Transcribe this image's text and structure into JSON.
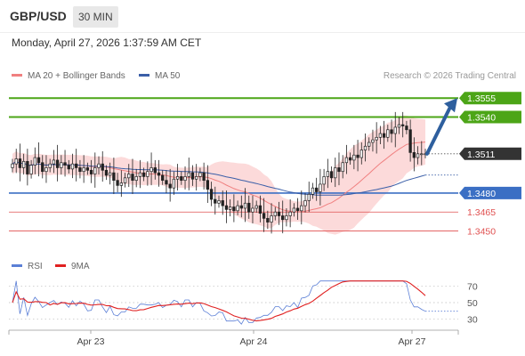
{
  "header": {
    "pair": "GBP/USD",
    "timeframe": "30 MIN",
    "datetime": "Monday, April 27, 2026 1:37:59 AM CET"
  },
  "legend": {
    "ma20_label": "MA 20 + Bollinger Bands",
    "ma50_label": "MA 50",
    "rsi_label": "RSI",
    "ma9_label": "9MA",
    "credit": "Research © 2026 Trading Central"
  },
  "colors": {
    "resistance": "#4ca517",
    "support_blue": "#3b6fc4",
    "support_red": "#e05050",
    "ma20": "#f08080",
    "band_fill": "#fcd4d4",
    "ma50": "#3b5fa8",
    "candle": "#222222",
    "arrow": "#2e5f9e",
    "rsi": "#5b7fd6",
    "rsi_ma": "#e02020",
    "last_price_bg": "#333333"
  },
  "chart_data": [
    {
      "type": "candlestick",
      "ylim": [
        1.343,
        1.3565
      ],
      "x_labels": [
        "Apr 23",
        "Apr 24",
        "Apr 27"
      ],
      "last_price": 1.3511,
      "resistance_levels": [
        1.3555,
        1.354
      ],
      "support_levels": [
        1.348,
        1.3465,
        1.345
      ],
      "level_labels": {
        "r2": "1.3555",
        "r1": "1.3540",
        "last": "1.3511",
        "s1": "1.3480",
        "s2": "1.3465",
        "s3": "1.3450"
      },
      "forecast_arrow": {
        "from": 1.3511,
        "to": 1.3555
      },
      "series": [
        {
          "name": "MA 20 + Bollinger Bands",
          "type": "band"
        },
        {
          "name": "MA 50",
          "type": "line"
        }
      ],
      "close": [
        1.3503,
        1.3507,
        1.35,
        1.3505,
        1.3495,
        1.3502,
        1.3508,
        1.3504,
        1.3497,
        1.35,
        1.3503,
        1.3506,
        1.35,
        1.3504,
        1.3502,
        1.3499,
        1.3503,
        1.35,
        1.3497,
        1.35,
        1.3498,
        1.3495,
        1.35,
        1.3503,
        1.3498,
        1.3494,
        1.3496,
        1.349,
        1.3486,
        1.3488,
        1.3492,
        1.3495,
        1.349,
        1.3493,
        1.3496,
        1.3493,
        1.3497,
        1.35,
        1.3496,
        1.3494,
        1.349,
        1.3487,
        1.3484,
        1.3491,
        1.3493,
        1.349,
        1.3493,
        1.3496,
        1.3491,
        1.3493,
        1.3496,
        1.349,
        1.3483,
        1.3475,
        1.3472,
        1.3474,
        1.347,
        1.3467,
        1.3469,
        1.3466,
        1.347,
        1.3468,
        1.3472,
        1.3465,
        1.3468,
        1.347,
        1.3464,
        1.346,
        1.3457,
        1.3462,
        1.3465,
        1.3462,
        1.3459,
        1.3462,
        1.3465,
        1.3468,
        1.3466,
        1.347,
        1.3474,
        1.3479,
        1.3484,
        1.3481,
        1.3487,
        1.3493,
        1.3497,
        1.3492,
        1.35,
        1.3497,
        1.3504,
        1.3508,
        1.3506,
        1.351,
        1.3508,
        1.3514,
        1.3517,
        1.352,
        1.3522,
        1.3524,
        1.3527,
        1.3524,
        1.353,
        1.3527,
        1.3532,
        1.3534,
        1.3533,
        1.353,
        1.3512,
        1.3508,
        1.3511,
        1.3511,
        1.3511
      ]
    },
    {
      "type": "line",
      "name": "RSI",
      "ylim": [
        20,
        80
      ],
      "y_ticks": [
        70,
        50,
        30
      ],
      "series": [
        {
          "name": "RSI"
        },
        {
          "name": "9MA"
        }
      ]
    }
  ]
}
